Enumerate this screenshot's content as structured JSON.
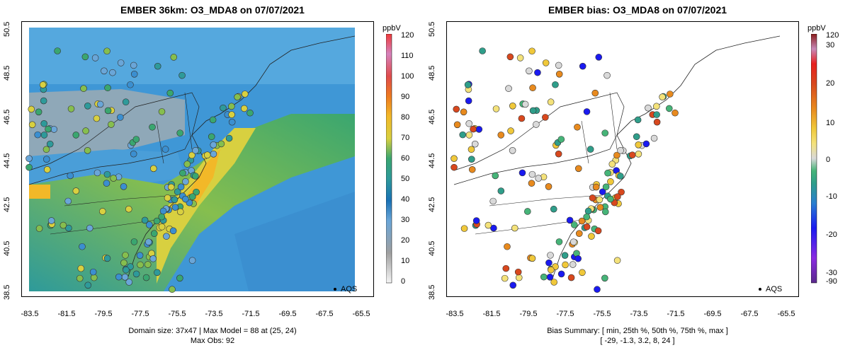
{
  "left": {
    "title": "EMBER 36km: O3_MDA8 on 07/07/2021",
    "footer_line1": "Domain size: 37x47 | Max Model = 88 at (25, 24)",
    "footer_line2": "Max Obs: 92",
    "colorbar": {
      "unit": "ppbV",
      "ticks": [
        "120",
        "110",
        "100",
        "90",
        "80",
        "70",
        "60",
        "50",
        "40",
        "30",
        "20",
        "10",
        "0"
      ],
      "colors": [
        "#f5f5f5",
        "#a0a0a0",
        "#6aa6d8",
        "#3b8fd0",
        "#1a72b6",
        "#2e9a9a",
        "#3aa670",
        "#86be4e",
        "#d8d040",
        "#f2b828",
        "#ee7a20",
        "#e04c4c",
        "#d682bc",
        "#ee3a3a"
      ]
    },
    "legend": "AQS"
  },
  "right": {
    "title": "EMBER bias: O3_MDA8 on 07/07/2021",
    "footer_line1": "Bias Summary: [ min, 25th %, 50th %, 75th %, max ]",
    "footer_line2": "[ -29,   -1.3,   3.2,   8,   24 ]",
    "colorbar": {
      "unit": "ppbV",
      "ticks": [
        "120",
        "30",
        "20",
        "10",
        "0",
        "-10",
        "-20",
        "-30",
        "-90"
      ],
      "colors": [
        "#5a2a8c",
        "#8a2be2",
        "#1a1af0",
        "#2a7fd0",
        "#2f9e8a",
        "#46b478",
        "#d9d9d9",
        "#f4e27a",
        "#f0c83a",
        "#e88a1e",
        "#d8481e",
        "#e8201e",
        "#c88ab8",
        "#8b1c1c"
      ]
    },
    "legend": "AQS"
  },
  "axes": {
    "yticks": [
      "50.5",
      "48.5",
      "46.5",
      "44.5",
      "42.5",
      "40.5",
      "38.5"
    ],
    "xticks": [
      "-83.5",
      "-81.5",
      "-79.5",
      "-77.5",
      "-75.5",
      "-73.5",
      "-71.5",
      "-69.5",
      "-67.5",
      "-65.5"
    ]
  },
  "map_data": {
    "lon_range": [
      -84,
      -65
    ],
    "lat_range": [
      38.5,
      50.5
    ]
  }
}
